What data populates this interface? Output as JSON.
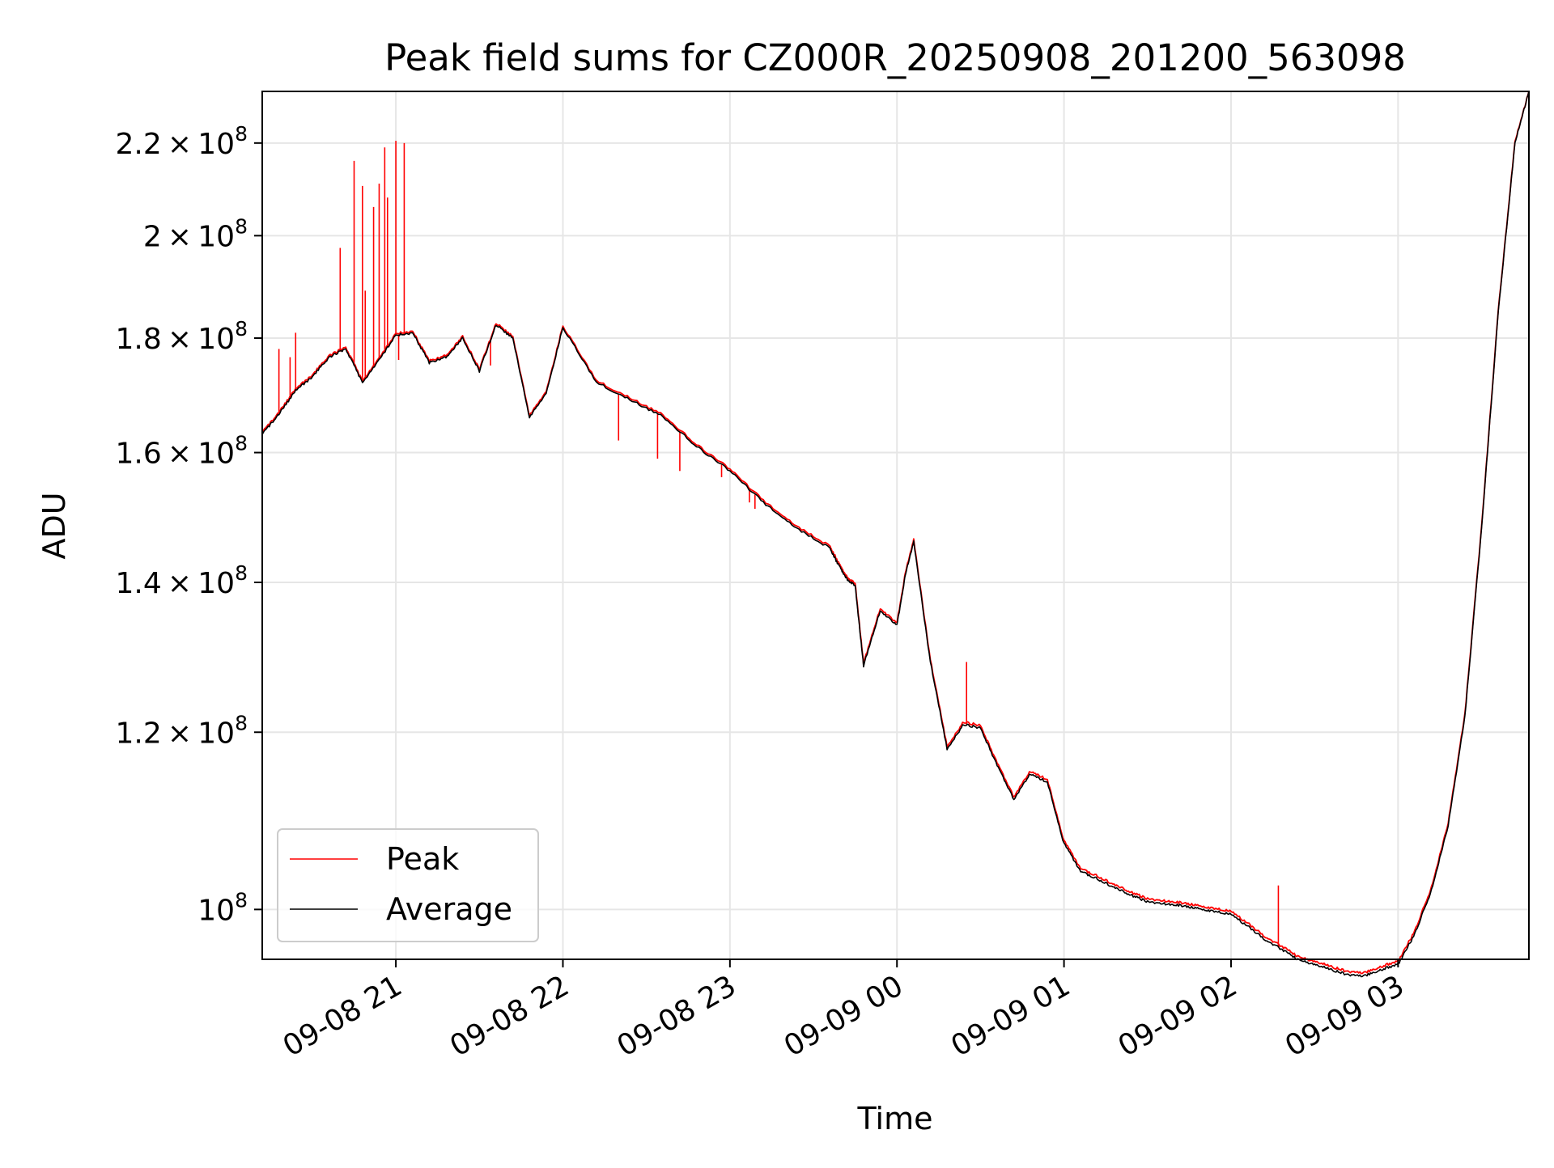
{
  "chart_data": {
    "type": "line",
    "title": "Peak field sums for CZ000R_20250908_201200_563098",
    "xlabel": "Time",
    "ylabel": "ADU",
    "x_type": "datetime",
    "xlim": [
      "2025-09-08 20:12",
      "2025-09-09 03:47"
    ],
    "ylim": [
      95000000,
      232000000
    ],
    "y_scale": "log",
    "grid": true,
    "legend_position": "lower-left",
    "x_ticks": [
      {
        "value": "2025-09-08 21:00",
        "label": "09-08 21"
      },
      {
        "value": "2025-09-08 22:00",
        "label": "09-08 22"
      },
      {
        "value": "2025-09-08 23:00",
        "label": "09-08 23"
      },
      {
        "value": "2025-09-09 00:00",
        "label": "09-09 00"
      },
      {
        "value": "2025-09-09 01:00",
        "label": "09-09 01"
      },
      {
        "value": "2025-09-09 02:00",
        "label": "09-09 02"
      },
      {
        "value": "2025-09-09 03:00",
        "label": "09-09 03"
      }
    ],
    "y_ticks": [
      {
        "value": 100000000,
        "mantissa": "",
        "exponent": "8"
      },
      {
        "value": 120000000,
        "mantissa": "1.2",
        "exponent": "8"
      },
      {
        "value": 140000000,
        "mantissa": "1.4",
        "exponent": "8"
      },
      {
        "value": 160000000,
        "mantissa": "1.6",
        "exponent": "8"
      },
      {
        "value": 180000000,
        "mantissa": "1.8",
        "exponent": "8"
      },
      {
        "value": 200000000,
        "mantissa": "2",
        "exponent": "8"
      },
      {
        "value": 220000000,
        "mantissa": "2.2",
        "exponent": "8"
      }
    ],
    "series": [
      {
        "name": "Average",
        "color": "#000000",
        "x": [
          "2025-09-08 20:12",
          "2025-09-08 20:18",
          "2025-09-08 20:24",
          "2025-09-08 20:30",
          "2025-09-08 20:36",
          "2025-09-08 20:42",
          "2025-09-08 20:48",
          "2025-09-08 20:54",
          "2025-09-08 21:00",
          "2025-09-08 21:06",
          "2025-09-08 21:12",
          "2025-09-08 21:18",
          "2025-09-08 21:24",
          "2025-09-08 21:30",
          "2025-09-08 21:36",
          "2025-09-08 21:42",
          "2025-09-08 21:48",
          "2025-09-08 21:54",
          "2025-09-08 22:00",
          "2025-09-08 22:12",
          "2025-09-08 22:24",
          "2025-09-08 22:36",
          "2025-09-08 22:48",
          "2025-09-08 23:00",
          "2025-09-08 23:12",
          "2025-09-08 23:24",
          "2025-09-08 23:36",
          "2025-09-08 23:39",
          "2025-09-08 23:42",
          "2025-09-08 23:45",
          "2025-09-08 23:48",
          "2025-09-08 23:54",
          "2025-09-09 00:00",
          "2025-09-09 00:03",
          "2025-09-09 00:06",
          "2025-09-09 00:12",
          "2025-09-09 00:18",
          "2025-09-09 00:24",
          "2025-09-09 00:30",
          "2025-09-09 00:36",
          "2025-09-09 00:42",
          "2025-09-09 00:48",
          "2025-09-09 00:54",
          "2025-09-09 01:00",
          "2025-09-09 01:06",
          "2025-09-09 01:12",
          "2025-09-09 01:18",
          "2025-09-09 01:24",
          "2025-09-09 01:30",
          "2025-09-09 01:36",
          "2025-09-09 01:42",
          "2025-09-09 01:48",
          "2025-09-09 01:54",
          "2025-09-09 02:00",
          "2025-09-09 02:06",
          "2025-09-09 02:12",
          "2025-09-09 02:18",
          "2025-09-09 02:24",
          "2025-09-09 02:30",
          "2025-09-09 02:36",
          "2025-09-09 02:42",
          "2025-09-09 02:48",
          "2025-09-09 02:54",
          "2025-09-09 03:00",
          "2025-09-09 03:06",
          "2025-09-09 03:12",
          "2025-09-09 03:18",
          "2025-09-09 03:24",
          "2025-09-09 03:30",
          "2025-09-09 03:36",
          "2025-09-09 03:42",
          "2025-09-09 03:47"
        ],
        "values": [
          163000000,
          166500000,
          170500000,
          173000000,
          176500000,
          178000000,
          172000000,
          176000000,
          180500000,
          181000000,
          175500000,
          176500000,
          180000000,
          174000000,
          182500000,
          180000000,
          166000000,
          170000000,
          182000000,
          172000000,
          169000000,
          166000000,
          161000000,
          157000000,
          152000000,
          148000000,
          145000000,
          142500000,
          140500000,
          139500000,
          128500000,
          136000000,
          134000000,
          141000000,
          146000000,
          129000000,
          118000000,
          121000000,
          120500000,
          116000000,
          112000000,
          115000000,
          114000000,
          107000000,
          104000000,
          103200000,
          102300000,
          101500000,
          100800000,
          100600000,
          100400000,
          100100000,
          99800000,
          99500000,
          98300000,
          97000000,
          96000000,
          95000000,
          94500000,
          94000000,
          93500000,
          93400000,
          94000000,
          94500000,
          97500000,
          102000000,
          109000000,
          122000000,
          148000000,
          185000000,
          220000000,
          232000000
        ]
      },
      {
        "name": "Peak",
        "color": "#ff0000",
        "x": [
          "2025-09-08 20:12",
          "2025-09-08 20:18",
          "2025-09-08 20:24",
          "2025-09-08 20:30",
          "2025-09-08 20:36",
          "2025-09-08 20:42",
          "2025-09-08 20:48",
          "2025-09-08 20:54",
          "2025-09-08 21:00",
          "2025-09-08 21:06",
          "2025-09-08 21:12",
          "2025-09-08 21:18",
          "2025-09-08 21:24",
          "2025-09-08 21:30",
          "2025-09-08 21:36",
          "2025-09-08 21:42",
          "2025-09-08 21:48",
          "2025-09-08 21:54",
          "2025-09-08 22:00",
          "2025-09-08 22:12",
          "2025-09-08 22:24",
          "2025-09-08 22:36",
          "2025-09-08 22:48",
          "2025-09-08 23:00",
          "2025-09-08 23:12",
          "2025-09-08 23:24",
          "2025-09-08 23:36",
          "2025-09-08 23:39",
          "2025-09-08 23:42",
          "2025-09-08 23:45",
          "2025-09-08 23:48",
          "2025-09-08 23:54",
          "2025-09-09 00:00",
          "2025-09-09 00:03",
          "2025-09-09 00:06",
          "2025-09-09 00:12",
          "2025-09-09 00:18",
          "2025-09-09 00:24",
          "2025-09-09 00:30",
          "2025-09-09 00:36",
          "2025-09-09 00:42",
          "2025-09-09 00:48",
          "2025-09-09 00:54",
          "2025-09-09 01:00",
          "2025-09-09 01:06",
          "2025-09-09 01:12",
          "2025-09-09 01:18",
          "2025-09-09 01:24",
          "2025-09-09 01:30",
          "2025-09-09 01:36",
          "2025-09-09 01:42",
          "2025-09-09 01:48",
          "2025-09-09 01:54",
          "2025-09-09 02:00",
          "2025-09-09 02:06",
          "2025-09-09 02:12",
          "2025-09-09 02:18",
          "2025-09-09 02:24",
          "2025-09-09 02:30",
          "2025-09-09 02:36",
          "2025-09-09 02:42",
          "2025-09-09 02:48",
          "2025-09-09 02:54",
          "2025-09-09 03:00",
          "2025-09-09 03:06",
          "2025-09-09 03:12",
          "2025-09-09 03:18",
          "2025-09-09 03:24",
          "2025-09-09 03:30",
          "2025-09-09 03:36",
          "2025-09-09 03:42",
          "2025-09-09 03:47"
        ],
        "values": [
          163300000,
          166800000,
          170800000,
          173300000,
          176800000,
          178300000,
          172300000,
          176300000,
          180800000,
          181300000,
          175800000,
          176800000,
          180300000,
          174300000,
          182800000,
          180300000,
          166300000,
          170300000,
          182300000,
          172300000,
          169300000,
          166300000,
          161300000,
          157300000,
          152300000,
          148300000,
          145300000,
          142800000,
          140800000,
          139800000,
          128800000,
          136300000,
          134300000,
          141300000,
          146300000,
          129300000,
          118300000,
          121300000,
          120800000,
          116300000,
          112300000,
          115300000,
          114300000,
          107300000,
          104300000,
          103500000,
          102600000,
          101800000,
          101100000,
          100900000,
          100700000,
          100400000,
          100100000,
          99800000,
          98600000,
          97300000,
          96300000,
          95300000,
          94800000,
          94300000,
          93800000,
          93700000,
          94300000,
          94800000,
          97800000,
          102300000,
          109300000,
          122300000,
          148300000,
          185300000,
          220300000,
          232000000
        ],
        "spikes": [
          {
            "x": "2025-09-08 20:18",
            "value": 178000000
          },
          {
            "x": "2025-09-08 20:22",
            "value": 176500000
          },
          {
            "x": "2025-09-08 20:24",
            "value": 181000000
          },
          {
            "x": "2025-09-08 20:40",
            "value": 197500000
          },
          {
            "x": "2025-09-08 20:45",
            "value": 216000000
          },
          {
            "x": "2025-09-08 20:48",
            "value": 210500000
          },
          {
            "x": "2025-09-08 20:49",
            "value": 189000000
          },
          {
            "x": "2025-09-08 20:52",
            "value": 206000000
          },
          {
            "x": "2025-09-08 20:54",
            "value": 211000000
          },
          {
            "x": "2025-09-08 20:56",
            "value": 219000000
          },
          {
            "x": "2025-09-08 20:57",
            "value": 208000000
          },
          {
            "x": "2025-09-08 21:00",
            "value": 220500000
          },
          {
            "x": "2025-09-08 21:01",
            "value": 176000000
          },
          {
            "x": "2025-09-08 21:03",
            "value": 220000000
          },
          {
            "x": "2025-09-08 21:34",
            "value": 175000000
          },
          {
            "x": "2025-09-08 22:20",
            "value": 162000000
          },
          {
            "x": "2025-09-08 22:34",
            "value": 159000000
          },
          {
            "x": "2025-09-08 22:42",
            "value": 157000000
          },
          {
            "x": "2025-09-08 22:57",
            "value": 156000000
          },
          {
            "x": "2025-09-08 23:07",
            "value": 152000000
          },
          {
            "x": "2025-09-08 23:09",
            "value": 151000000
          },
          {
            "x": "2025-09-09 00:25",
            "value": 129000000
          },
          {
            "x": "2025-09-09 02:17",
            "value": 102500000
          }
        ]
      }
    ]
  }
}
